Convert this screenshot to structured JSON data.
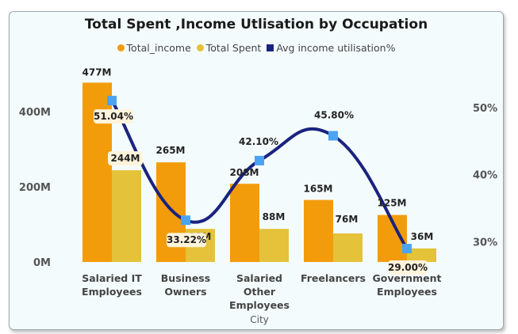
{
  "chart_data": {
    "type": "bar",
    "title": "Total Spent ,Income Utlisation by Occupation",
    "xlabel": "City",
    "categories": [
      "Salaried IT\nEmployees",
      "Business\nOwners",
      "Salaried\nOther\nEmployees",
      "Freelancers",
      "Government\nEmployees"
    ],
    "series": [
      {
        "name": "Total_income",
        "values": [
          477,
          265,
          208,
          165,
          125
        ],
        "labels": [
          "477M",
          "265M",
          "208M",
          "165M",
          "125M"
        ],
        "color": "#f29c0c"
      },
      {
        "name": "Total Spent",
        "values": [
          244,
          88,
          88,
          76,
          36
        ],
        "labels": [
          "244M",
          "88M",
          "88M",
          "76M",
          "36M"
        ],
        "color": "#e4c23a"
      }
    ],
    "line": {
      "name": "Avg income utilisation%",
      "values": [
        51.04,
        33.22,
        42.1,
        45.8,
        29.0
      ],
      "labels": [
        "51.04%",
        "33.22%",
        "42.10%",
        "45.80%",
        "29.00%"
      ],
      "color": "#1a237e",
      "marker_color": "#4ba3f2"
    },
    "y_left": {
      "ticks": [
        0,
        200,
        400
      ],
      "tick_labels": [
        "0M",
        "200M",
        "400M"
      ],
      "ylim": [
        0,
        500
      ]
    },
    "y_right": {
      "ticks": [
        30,
        40,
        50
      ],
      "tick_labels": [
        "30%",
        "40%",
        "50%"
      ],
      "ylim": [
        27.0,
        55.0
      ]
    },
    "legend": "top-center",
    "grid": false
  }
}
